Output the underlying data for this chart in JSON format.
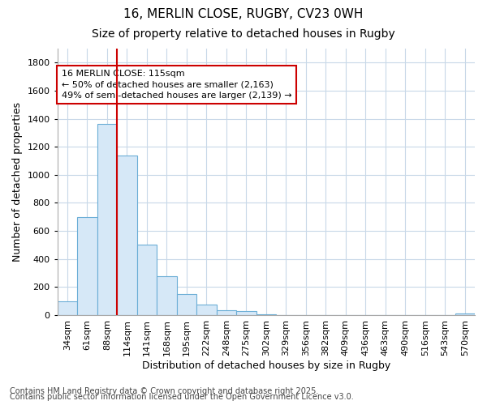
{
  "title1": "16, MERLIN CLOSE, RUGBY, CV23 0WH",
  "title2": "Size of property relative to detached houses in Rugby",
  "xlabel": "Distribution of detached houses by size in Rugby",
  "ylabel": "Number of detached properties",
  "categories": [
    "34sqm",
    "61sqm",
    "88sqm",
    "114sqm",
    "141sqm",
    "168sqm",
    "195sqm",
    "222sqm",
    "248sqm",
    "275sqm",
    "302sqm",
    "329sqm",
    "356sqm",
    "382sqm",
    "409sqm",
    "436sqm",
    "463sqm",
    "490sqm",
    "516sqm",
    "543sqm",
    "570sqm"
  ],
  "values": [
    100,
    700,
    1360,
    1140,
    500,
    275,
    148,
    75,
    35,
    30,
    5,
    2,
    0,
    0,
    0,
    0,
    0,
    0,
    0,
    0,
    10
  ],
  "bar_color": "#d6e8f7",
  "bar_edge_color": "#6baed6",
  "highlight_index": 3,
  "highlight_line_color": "#cc0000",
  "ylim": [
    0,
    1900
  ],
  "yticks": [
    0,
    200,
    400,
    600,
    800,
    1000,
    1200,
    1400,
    1600,
    1800
  ],
  "annotation_text": "16 MERLIN CLOSE: 115sqm\n← 50% of detached houses are smaller (2,163)\n49% of semi-detached houses are larger (2,139) →",
  "annotation_box_color": "#ffffff",
  "annotation_box_edge": "#cc0000",
  "footer1": "Contains HM Land Registry data © Crown copyright and database right 2025.",
  "footer2": "Contains public sector information licensed under the Open Government Licence v3.0.",
  "bg_color": "#ffffff",
  "plot_bg_color": "#ffffff",
  "grid_color": "#c8d8e8",
  "title1_fontsize": 11,
  "title2_fontsize": 10,
  "axis_label_fontsize": 9,
  "tick_fontsize": 8,
  "annotation_fontsize": 8,
  "footer_fontsize": 7
}
